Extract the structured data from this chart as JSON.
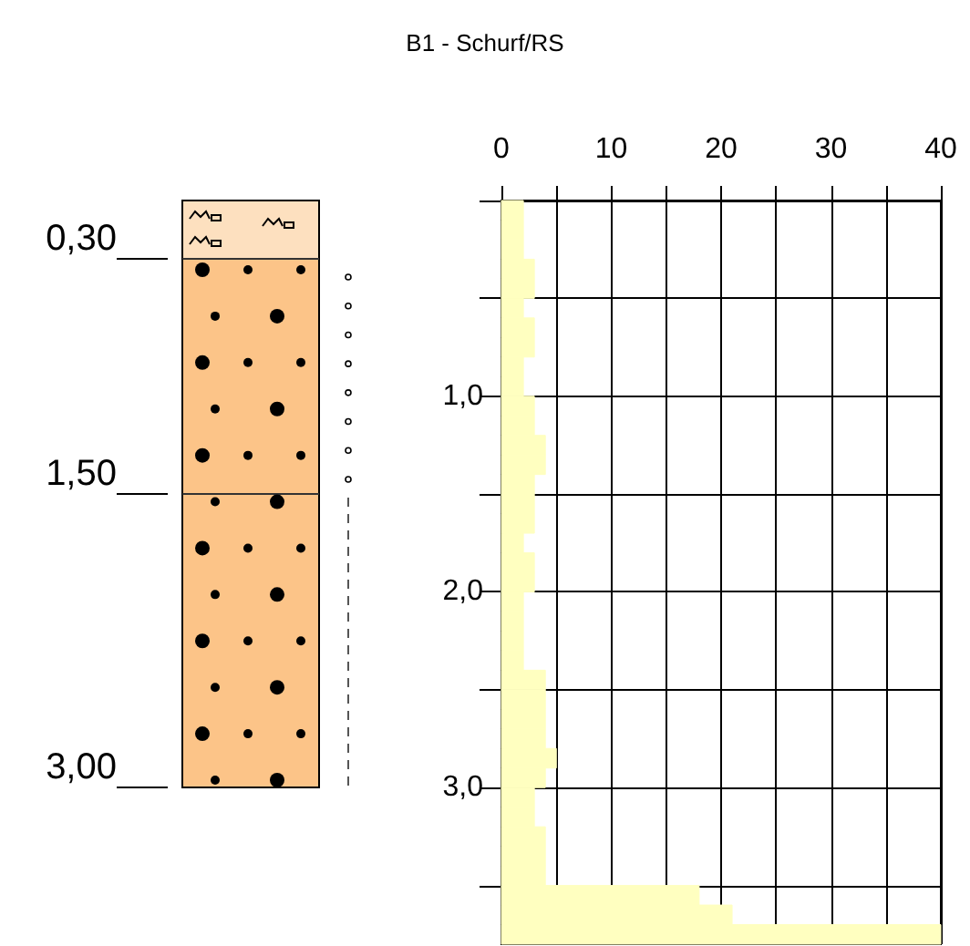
{
  "chart_data": {
    "type": "histogram",
    "orientation": "horizontal",
    "title": "B1 - Schurf/RS",
    "color": "#ffffc0",
    "bins": [
      0,
      0.1,
      0.2,
      0.3,
      0.4,
      0.5,
      0.6,
      0.7,
      0.8,
      0.9,
      1.0,
      1.1,
      1.2,
      1.3,
      1.4,
      1.5,
      1.6,
      1.7,
      1.8,
      1.9,
      2.0,
      2.1,
      2.2,
      2.3,
      2.4,
      2.5,
      2.6,
      2.7,
      2.8,
      2.9,
      3.0,
      3.1,
      3.2,
      3.3,
      3.4,
      3.5,
      3.6,
      3.7,
      3.8
    ],
    "values": [
      2,
      2,
      2,
      3,
      3,
      2,
      3,
      3,
      2,
      2,
      3,
      3,
      4,
      4,
      3,
      3,
      3,
      2,
      3,
      3,
      2,
      2,
      2,
      2,
      4,
      4,
      4,
      4,
      5,
      4,
      3,
      3,
      4,
      4,
      4,
      18,
      21,
      40
    ],
    "xlim": [
      0,
      40
    ],
    "xticks": [
      0,
      {
        "value": 5,
        "label": null
      },
      10,
      {
        "value": 15,
        "label": null
      },
      20,
      {
        "value": 25,
        "label": null
      },
      30,
      {
        "value": 35,
        "label": null
      },
      40
    ],
    "ylim": [
      3.8,
      0
    ],
    "yticks": [
      {
        "value": 0,
        "label": null
      },
      {
        "value": 0.5,
        "label": null
      },
      {
        "value": 1,
        "label": "1,0"
      },
      {
        "value": 1.5,
        "label": null
      },
      {
        "value": 2,
        "label": "2,0"
      },
      {
        "value": 2.5,
        "label": null
      },
      {
        "value": 3,
        "label": "3,0"
      },
      {
        "value": 3.5,
        "label": null
      }
    ],
    "grid": true,
    "annotations": [
      "0,30",
      "1,50",
      "3,00"
    ]
  }
}
